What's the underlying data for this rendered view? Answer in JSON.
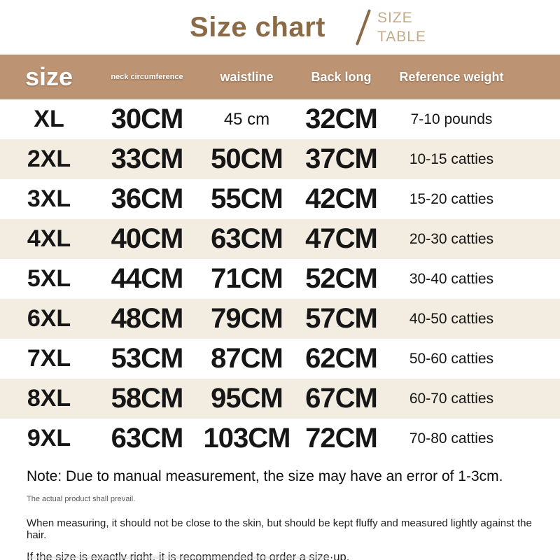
{
  "header": {
    "title": "Size chart",
    "subtitle_line1": "SIZE",
    "subtitle_line2": "TABLE"
  },
  "chart_data": {
    "type": "table",
    "title": "Size chart",
    "columns": [
      "size",
      "neck circumference",
      "waistline",
      "Back long",
      "Reference weight"
    ],
    "rows": [
      [
        "XL",
        "30CM",
        "45 cm",
        "32CM",
        "7-10 pounds"
      ],
      [
        "2XL",
        "33CM",
        "50CM",
        "37CM",
        "10-15 catties"
      ],
      [
        "3XL",
        "36CM",
        "55CM",
        "42CM",
        "15-20 catties"
      ],
      [
        "4XL",
        "40CM",
        "63CM",
        "47CM",
        "20-30 catties"
      ],
      [
        "5XL",
        "44CM",
        "71CM",
        "52CM",
        "30-40 catties"
      ],
      [
        "6XL",
        "48CM",
        "79CM",
        "57CM",
        "40-50 catties"
      ],
      [
        "7XL",
        "53CM",
        "87CM",
        "62CM",
        "50-60 catties"
      ],
      [
        "8XL",
        "58CM",
        "95CM",
        "67CM",
        "60-70 catties"
      ],
      [
        "9XL",
        "63CM",
        "103CM",
        "72CM",
        "70-80 catties"
      ]
    ],
    "small_value_cells": [
      [
        0,
        2
      ]
    ],
    "layout": {
      "striped_row_indices": [
        1,
        3,
        5,
        7
      ]
    }
  },
  "notes": {
    "main": "Note: Due to manual measurement, the size may have an error of 1-3cm.",
    "secondary": "The actual product shall prevail.",
    "measuring": "When measuring, it should not be close to the skin, but should be kept fluffy and measured lightly against the hair.",
    "size_up": "If the size is exactly right, it is recommended to order a size·up."
  },
  "colors": {
    "header-bg": "#BD9473",
    "stripe-bg": "#F3ECE1",
    "title-brown": "#8A6A47",
    "subtitle-tan": "#C3AB89",
    "text-dark": "#161616",
    "note-gray": "#5a5a5a"
  }
}
